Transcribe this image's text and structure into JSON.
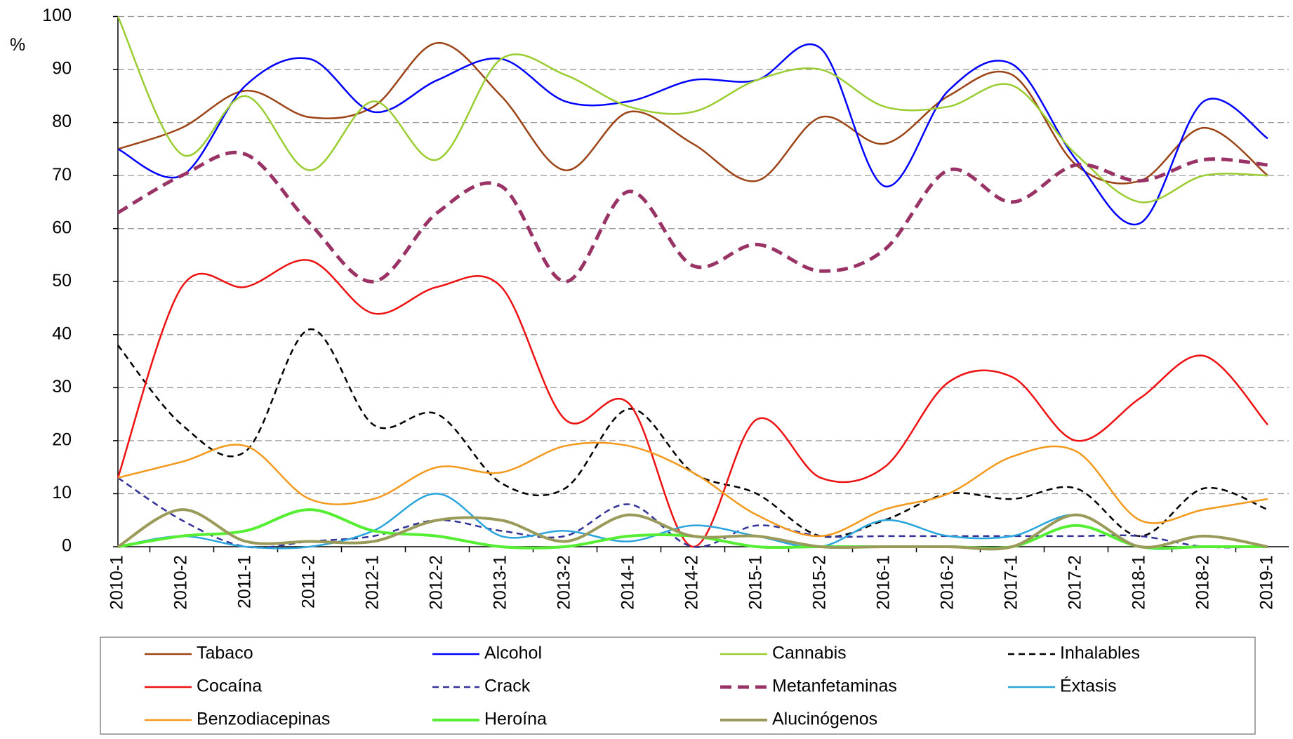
{
  "chart_data": {
    "type": "line",
    "y_label": "%",
    "categories": [
      "2010-1",
      "2010-2",
      "2011-1",
      "2011-2",
      "2012-1",
      "2012-2",
      "2013-1",
      "2013-2",
      "2014-1",
      "2014-2",
      "2015-1",
      "2015-2",
      "2016-1",
      "2016-2",
      "2017-1",
      "2017-2",
      "2018-1",
      "2018-2",
      "2019-1"
    ],
    "ylim": [
      0,
      100
    ],
    "yticks": [
      0,
      10,
      20,
      30,
      40,
      50,
      60,
      70,
      80,
      90,
      100
    ],
    "grid": true,
    "smooth": true,
    "series": [
      {
        "name": "Tabaco",
        "color": "#9c4416",
        "values": [
          75,
          79,
          86,
          81,
          83,
          95,
          85,
          71,
          82,
          76,
          69,
          81,
          76,
          85,
          89,
          72,
          69,
          79,
          70
        ]
      },
      {
        "name": "Alcohol",
        "color": "#0000ff",
        "values": [
          75,
          70,
          87,
          92,
          82,
          88,
          92,
          84,
          84,
          88,
          88,
          94,
          68,
          86,
          91,
          73,
          61,
          84,
          77
        ]
      },
      {
        "name": "Cannabis",
        "color": "#9acd32",
        "values": [
          100,
          74,
          85,
          71,
          84,
          73,
          92,
          89,
          83,
          82,
          88,
          90,
          83,
          83,
          87,
          74,
          65,
          70,
          70
        ]
      },
      {
        "name": "Inhalables",
        "color": "#000000",
        "dashed": true,
        "values": [
          38,
          23,
          18,
          41,
          23,
          25,
          12,
          11,
          26,
          14,
          10,
          2,
          5,
          10,
          9,
          11,
          2,
          11,
          7
        ]
      },
      {
        "name": "Cocaína",
        "color": "#ee1111",
        "values": [
          13,
          49,
          49,
          54,
          44,
          49,
          49,
          24,
          27,
          0,
          24,
          13,
          15,
          31,
          32,
          20,
          28,
          36,
          23
        ]
      },
      {
        "name": "Crack",
        "color": "#333399",
        "dashed": true,
        "values": [
          13,
          5,
          0,
          1,
          2,
          5,
          3,
          2,
          8,
          0,
          4,
          2,
          2,
          2,
          2,
          2,
          2,
          0,
          0
        ]
      },
      {
        "name": "Metanfetaminas",
        "color": "#993366",
        "dashed": true,
        "line_width": 5,
        "values": [
          63,
          70,
          74,
          61,
          50,
          63,
          68,
          50,
          67,
          53,
          57,
          52,
          56,
          71,
          65,
          72,
          69,
          73,
          72
        ]
      },
      {
        "name": "Éxtasis",
        "color": "#2aa5dc",
        "values": [
          0,
          2,
          0,
          0,
          3,
          10,
          2,
          3,
          1,
          4,
          2,
          0,
          5,
          2,
          2,
          6,
          0,
          0,
          0
        ]
      },
      {
        "name": "Benzodiacepinas",
        "color": "#f39a1e",
        "values": [
          13,
          16,
          19,
          9,
          9,
          15,
          14,
          19,
          19,
          14,
          6,
          2,
          7,
          10,
          17,
          18,
          5,
          7,
          9
        ]
      },
      {
        "name": "Heroína",
        "color": "#55ee33",
        "line_width": 4,
        "values": [
          0,
          2,
          3,
          7,
          3,
          2,
          0,
          0,
          2,
          2,
          0,
          0,
          0,
          0,
          0,
          4,
          0,
          0,
          0
        ]
      },
      {
        "name": "Alucinógenos",
        "color": "#9a9a5a",
        "line_width": 4,
        "values": [
          0,
          7,
          1,
          1,
          1,
          5,
          5,
          1,
          6,
          2,
          2,
          0,
          0,
          0,
          0,
          6,
          0,
          2,
          0
        ]
      }
    ]
  }
}
